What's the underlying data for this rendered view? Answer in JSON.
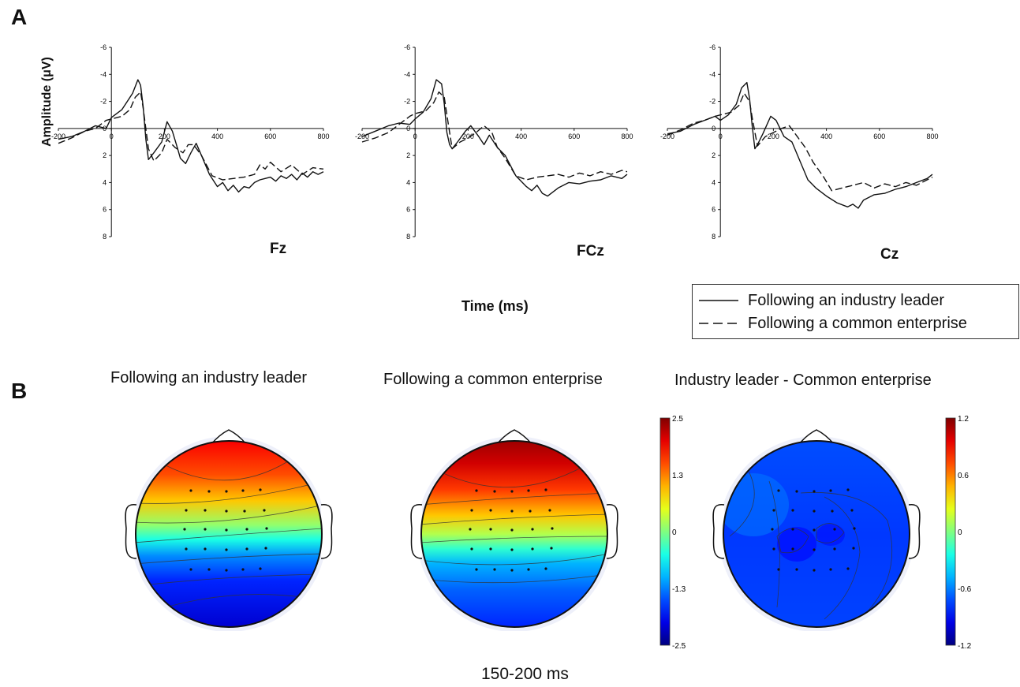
{
  "panels": {
    "a": "A",
    "b": "B"
  },
  "erp": {
    "ylabel": "Amplitude (μV)",
    "xlabel": "Time (ms)",
    "x_ticks": [
      -200,
      0,
      200,
      400,
      600,
      800
    ],
    "y_ticks": [
      -6,
      -4,
      -2,
      0,
      2,
      4,
      6,
      8
    ],
    "legend": {
      "solid": "Following an industry leader",
      "dashed": "Following a common enterprise"
    }
  },
  "topo": {
    "titles": [
      "Following an industry leader",
      "Following a common enterprise",
      "Industry leader - Common enterprise"
    ],
    "time_window": "150-200 ms",
    "colorbar1": {
      "labels": [
        "2.5",
        "1.3",
        "0",
        "-1.3",
        "-2.5"
      ]
    },
    "colorbar2": {
      "labels": [
        "1.2",
        "0.6",
        "0",
        "-0.6",
        "-1.2"
      ]
    },
    "colormap": "jet"
  },
  "chart_data": [
    {
      "type": "line",
      "electrode": "Fz",
      "xlim": [
        -200,
        800
      ],
      "ylim": [
        -6,
        8
      ],
      "y_inverted": true,
      "series": [
        {
          "name": "Following an industry leader",
          "style": "solid",
          "x": [
            -200,
            -150,
            -100,
            -60,
            -20,
            0,
            40,
            80,
            100,
            110,
            120,
            130,
            140,
            160,
            190,
            210,
            230,
            250,
            260,
            280,
            300,
            320,
            340,
            370,
            400,
            420,
            440,
            460,
            480,
            500,
            520,
            540,
            560,
            580,
            600,
            620,
            640,
            660,
            680,
            700,
            720,
            740,
            760,
            780,
            800
          ],
          "y": [
            0.8,
            0.6,
            0.2,
            -0.2,
            0,
            -0.8,
            -1.4,
            -2.6,
            -3.6,
            -3.2,
            -1.6,
            0.8,
            2.3,
            1.8,
            1.0,
            -0.5,
            0.2,
            1.5,
            2.2,
            2.6,
            1.8,
            1.1,
            2.0,
            3.4,
            4.3,
            4.0,
            4.6,
            4.2,
            4.7,
            4.3,
            4.4,
            4.0,
            3.8,
            3.7,
            3.6,
            3.9,
            3.5,
            3.7,
            3.4,
            3.8,
            3.3,
            3.6,
            3.2,
            3.4,
            3.2
          ]
        },
        {
          "name": "Following a common enterprise",
          "style": "dashed",
          "x": [
            -200,
            -150,
            -100,
            -60,
            -20,
            0,
            40,
            70,
            90,
            110,
            120,
            140,
            160,
            190,
            210,
            240,
            270,
            290,
            310,
            340,
            380,
            420,
            460,
            500,
            540,
            560,
            580,
            600,
            640,
            680,
            720,
            760,
            800
          ],
          "y": [
            1.1,
            0.7,
            0.2,
            0.0,
            -0.6,
            -0.7,
            -0.9,
            -1.4,
            -2.3,
            -2.7,
            -1.5,
            1.5,
            2.4,
            1.8,
            0.8,
            1.4,
            1.8,
            1.2,
            1.2,
            2.0,
            3.5,
            3.8,
            3.7,
            3.6,
            3.4,
            2.7,
            3.0,
            2.5,
            3.2,
            2.7,
            3.4,
            2.9,
            3.0
          ]
        }
      ]
    },
    {
      "type": "line",
      "electrode": "FCz",
      "xlim": [
        -200,
        800
      ],
      "ylim": [
        -6,
        8
      ],
      "y_inverted": true,
      "series": [
        {
          "name": "Following an industry leader",
          "style": "solid",
          "x": [
            -200,
            -150,
            -100,
            -60,
            -20,
            0,
            30,
            60,
            80,
            100,
            110,
            120,
            130,
            140,
            160,
            190,
            210,
            240,
            260,
            280,
            310,
            340,
            380,
            420,
            440,
            460,
            480,
            500,
            540,
            580,
            620,
            660,
            700,
            740,
            780,
            800
          ],
          "y": [
            0.6,
            0.2,
            -0.2,
            -0.4,
            -0.3,
            -0.7,
            -1.2,
            -2.2,
            -3.6,
            -3.3,
            -1.8,
            0.3,
            1.2,
            1.5,
            1.0,
            0.2,
            -0.2,
            0.6,
            1.2,
            0.5,
            1.4,
            2.0,
            3.5,
            4.3,
            4.6,
            4.2,
            4.8,
            5.0,
            4.4,
            4.0,
            4.1,
            3.9,
            3.8,
            3.5,
            3.7,
            3.4
          ]
        },
        {
          "name": "Following a common enterprise",
          "style": "dashed",
          "x": [
            -200,
            -150,
            -100,
            -60,
            -20,
            0,
            40,
            70,
            90,
            110,
            120,
            140,
            170,
            200,
            230,
            260,
            290,
            310,
            340,
            380,
            420,
            460,
            500,
            540,
            580,
            620,
            660,
            700,
            740,
            780,
            800
          ],
          "y": [
            1.0,
            0.7,
            0.3,
            -0.3,
            -0.9,
            -1.1,
            -1.3,
            -1.9,
            -2.7,
            -2.3,
            -1.0,
            1.5,
            1.0,
            0.7,
            0.3,
            -0.2,
            0.3,
            1.4,
            2.2,
            3.5,
            3.8,
            3.6,
            3.5,
            3.4,
            3.6,
            3.3,
            3.5,
            3.2,
            3.4,
            3.1,
            3.2
          ]
        }
      ]
    },
    {
      "type": "line",
      "electrode": "Cz",
      "xlim": [
        -200,
        800
      ],
      "ylim": [
        -6,
        8
      ],
      "y_inverted": true,
      "series": [
        {
          "name": "Following an industry leader",
          "style": "solid",
          "x": [
            -200,
            -150,
            -100,
            -60,
            -20,
            0,
            30,
            60,
            80,
            100,
            110,
            120,
            130,
            140,
            160,
            190,
            210,
            240,
            270,
            300,
            330,
            360,
            400,
            440,
            480,
            500,
            520,
            540,
            580,
            620,
            660,
            700,
            740,
            780,
            800
          ],
          "y": [
            0.4,
            0.2,
            -0.3,
            -0.6,
            -0.9,
            -0.6,
            -1.0,
            -1.8,
            -3.0,
            -3.4,
            -2.2,
            -0.2,
            1.5,
            1.2,
            0.4,
            -0.9,
            -0.6,
            0.6,
            1.0,
            2.4,
            3.8,
            4.4,
            5.0,
            5.5,
            5.8,
            5.6,
            5.9,
            5.3,
            4.9,
            4.8,
            4.5,
            4.3,
            4.0,
            3.7,
            3.4
          ]
        },
        {
          "name": "Following a common enterprise",
          "style": "dashed",
          "x": [
            -200,
            -150,
            -100,
            -60,
            -20,
            0,
            40,
            70,
            90,
            110,
            120,
            140,
            170,
            200,
            230,
            260,
            290,
            320,
            350,
            390,
            420,
            460,
            500,
            540,
            580,
            620,
            660,
            700,
            740,
            780,
            800
          ],
          "y": [
            0.5,
            0.1,
            -0.4,
            -0.6,
            -0.9,
            -1.0,
            -1.2,
            -1.7,
            -2.6,
            -2.0,
            -0.8,
            1.3,
            0.6,
            0.3,
            0.0,
            -0.2,
            0.6,
            1.4,
            2.5,
            3.6,
            4.6,
            4.4,
            4.2,
            4.0,
            4.4,
            4.1,
            4.3,
            4.0,
            4.2,
            3.8,
            3.6
          ]
        }
      ]
    }
  ]
}
